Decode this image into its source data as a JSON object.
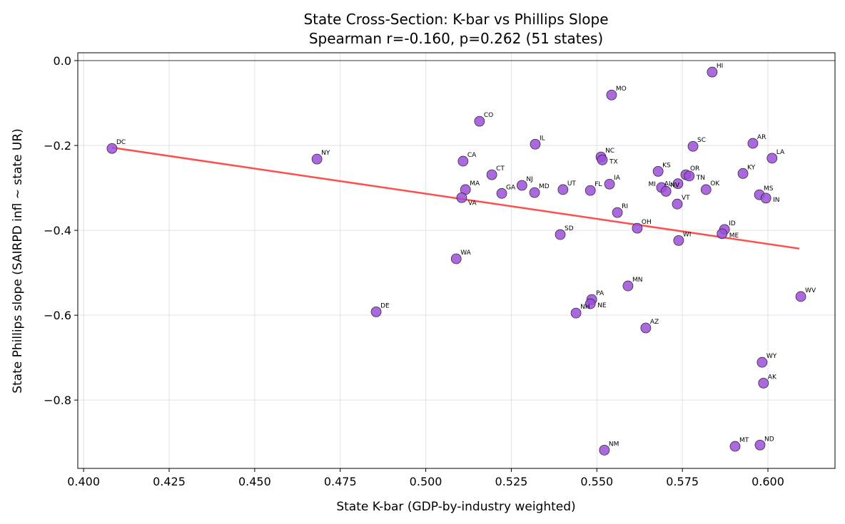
{
  "chart_data": {
    "type": "scatter",
    "title": "State Cross-Section: K-bar vs Phillips Slope",
    "subtitle": "Spearman r=-0.160, p=0.262 (51 states)",
    "xlabel": "State K-bar (GDP-by-industry weighted)",
    "ylabel": "State Phillips slope (SAIRPD infl ~ state UR)",
    "xlim": [
      0.3983,
      0.6196
    ],
    "ylim": [
      -0.961,
      0.0185
    ],
    "xticks": [
      "0.400",
      "0.425",
      "0.450",
      "0.475",
      "0.500",
      "0.525",
      "0.550",
      "0.575",
      "0.600"
    ],
    "yticks": [
      "0.0",
      "−0.2",
      "−0.4",
      "−0.6",
      "−0.8"
    ],
    "grid": true,
    "point_color": "#9b4fd6",
    "fit_color": "#ff4444",
    "fit_line": {
      "x": [
        0.4083,
        0.6092
      ],
      "y": [
        -0.205,
        -0.443
      ]
    },
    "zero_line": true,
    "points": [
      {
        "label": "DC",
        "x": 0.4083,
        "y": -0.207
      },
      {
        "label": "NY",
        "x": 0.4682,
        "y": -0.232
      },
      {
        "label": "CO",
        "x": 0.5157,
        "y": -0.143
      },
      {
        "label": "CA",
        "x": 0.5109,
        "y": -0.237
      },
      {
        "label": "MA",
        "x": 0.5116,
        "y": -0.304
      },
      {
        "label": "VA",
        "x": 0.5105,
        "y": -0.323
      },
      {
        "label": "WA",
        "x": 0.5089,
        "y": -0.467
      },
      {
        "label": "DE",
        "x": 0.4855,
        "y": -0.592
      },
      {
        "label": "CT",
        "x": 0.5193,
        "y": -0.269
      },
      {
        "label": "GA",
        "x": 0.5222,
        "y": -0.313
      },
      {
        "label": "NJ",
        "x": 0.5281,
        "y": -0.294
      },
      {
        "label": "MD",
        "x": 0.5318,
        "y": -0.311
      },
      {
        "label": "IL",
        "x": 0.532,
        "y": -0.197
      },
      {
        "label": "UT",
        "x": 0.5401,
        "y": -0.304
      },
      {
        "label": "SD",
        "x": 0.5393,
        "y": -0.41
      },
      {
        "label": "FL",
        "x": 0.5481,
        "y": -0.306
      },
      {
        "label": "NC",
        "x": 0.5512,
        "y": -0.227
      },
      {
        "label": "TX",
        "x": 0.5516,
        "y": -0.234
      },
      {
        "label": "IA",
        "x": 0.5537,
        "y": -0.291
      },
      {
        "label": "MO",
        "x": 0.5543,
        "y": -0.081
      },
      {
        "label": "RI",
        "x": 0.556,
        "y": -0.358
      },
      {
        "label": "OH",
        "x": 0.5618,
        "y": -0.395
      },
      {
        "label": "MN",
        "x": 0.5591,
        "y": -0.531
      },
      {
        "label": "PA",
        "x": 0.5485,
        "y": -0.563
      },
      {
        "label": "NE",
        "x": 0.5481,
        "y": -0.573
      },
      {
        "label": "NH",
        "x": 0.5439,
        "y": -0.595
      },
      {
        "label": "AZ",
        "x": 0.5643,
        "y": -0.63
      },
      {
        "label": "NM",
        "x": 0.5522,
        "y": -0.918
      },
      {
        "label": "KS",
        "x": 0.5679,
        "y": -0.261
      },
      {
        "label": "MI",
        "x": 0.5689,
        "y": -0.299
      },
      {
        "label": "NV",
        "x": 0.5702,
        "y": -0.308
      },
      {
        "label": "AL",
        "x": 0.5737,
        "y": -0.29
      },
      {
        "label": "OR",
        "x": 0.576,
        "y": -0.269
      },
      {
        "label": "TN",
        "x": 0.577,
        "y": -0.272
      },
      {
        "label": "VT",
        "x": 0.5735,
        "y": -0.338
      },
      {
        "label": "WI",
        "x": 0.5739,
        "y": -0.424
      },
      {
        "label": "SC",
        "x": 0.5781,
        "y": -0.202
      },
      {
        "label": "OK",
        "x": 0.5819,
        "y": -0.304
      },
      {
        "label": "HI",
        "x": 0.5837,
        "y": -0.027
      },
      {
        "label": "KY",
        "x": 0.5927,
        "y": -0.266
      },
      {
        "label": "AR",
        "x": 0.5956,
        "y": -0.195
      },
      {
        "label": "LA",
        "x": 0.6012,
        "y": -0.23
      },
      {
        "label": "MS",
        "x": 0.5975,
        "y": -0.316
      },
      {
        "label": "IN",
        "x": 0.5994,
        "y": -0.324
      },
      {
        "label": "ID",
        "x": 0.5873,
        "y": -0.398
      },
      {
        "label": "ME",
        "x": 0.5866,
        "y": -0.408
      },
      {
        "label": "WY",
        "x": 0.5983,
        "y": -0.711
      },
      {
        "label": "AK",
        "x": 0.5987,
        "y": -0.76
      },
      {
        "label": "MT",
        "x": 0.5904,
        "y": -0.909
      },
      {
        "label": "ND",
        "x": 0.5977,
        "y": -0.906
      },
      {
        "label": "WV",
        "x": 0.6096,
        "y": -0.556
      }
    ]
  }
}
